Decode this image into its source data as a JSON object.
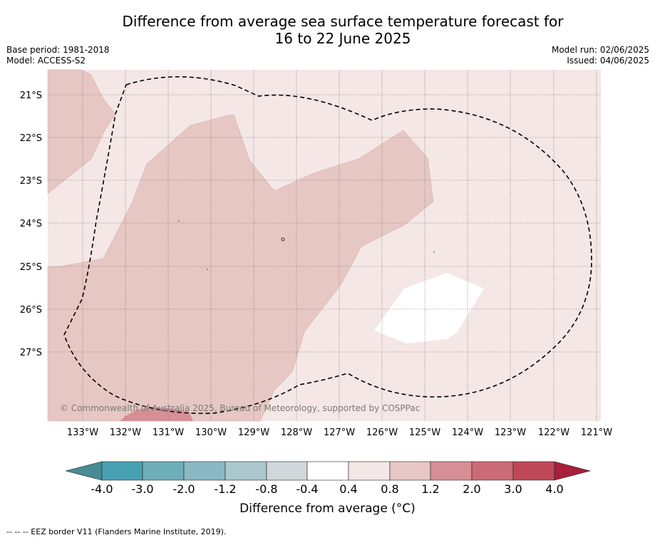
{
  "title": {
    "line1": "Difference from average sea surface temperature forecast for",
    "line2": "16 to 22 June 2025"
  },
  "meta_left": {
    "base_period": "Base period: 1981-2018",
    "model": "Model: ACCESS-S2"
  },
  "meta_right": {
    "model_run": "Model run: 02/06/2025",
    "issued": "Issued: 04/06/2025"
  },
  "map": {
    "lat_labels": [
      "21°S",
      "22°S",
      "23°S",
      "24°S",
      "25°S",
      "26°S",
      "27°S"
    ],
    "lon_labels": [
      "133°W",
      "132°W",
      "131°W",
      "130°W",
      "129°W",
      "128°W",
      "127°W",
      "126°W",
      "125°W",
      "124°W",
      "123°W",
      "122°W",
      "121°W"
    ],
    "copyright": "© Commonwealth of Australia 2025, Bureau of Meteorology, supported by COSPPac",
    "fill_colors": {
      "0.4_to_0.8": "#f4e7e6",
      "0.8_to_1.2": "#e7c7c3",
      "1.2_to_2.0": "#d78f96",
      "2.0_to_3.0": "#cb6b75",
      "-0.4_to_0.4": "#ffffff"
    }
  },
  "colorbar": {
    "ticks": [
      "-4.0",
      "-3.0",
      "-2.0",
      "-1.2",
      "-0.8",
      "-0.4",
      "0.4",
      "0.8",
      "1.2",
      "2.0",
      "3.0",
      "4.0"
    ],
    "colors": [
      "#468b96",
      "#48a1b2",
      "#6eaebb",
      "#8ab8c4",
      "#a9c7cc",
      "#d1d8dc",
      "#ffffff",
      "#f4e7e6",
      "#e7c7c3",
      "#d78f96",
      "#cb6b75",
      "#be4858",
      "#a8203b"
    ],
    "label": "Difference from average (°C)"
  },
  "footer": "--  --  -- EEZ border V11 (Flanders Marine Institute, 2019)."
}
